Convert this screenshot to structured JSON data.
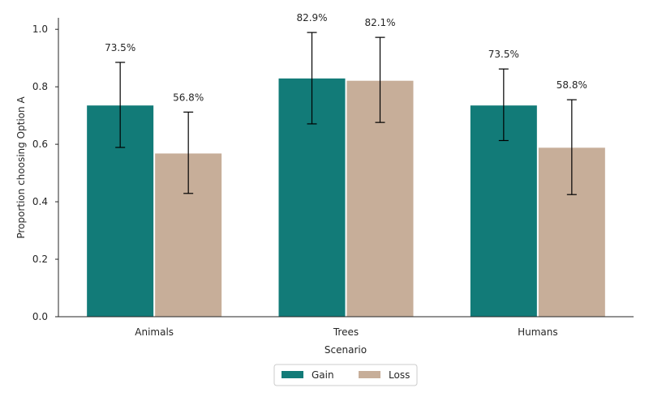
{
  "chart_data": {
    "type": "bar",
    "title": "",
    "xlabel": "Scenario",
    "ylabel": "Proportion choosing Option A",
    "categories": [
      "Animals",
      "Trees",
      "Humans"
    ],
    "ylim": [
      0,
      1.04
    ],
    "yticks": [
      0.0,
      0.2,
      0.4,
      0.6,
      0.8,
      1.0
    ],
    "ytick_labels": [
      "0.0",
      "0.2",
      "0.4",
      "0.6",
      "0.8",
      "1.0"
    ],
    "grid": false,
    "legend_position": "bottom-center",
    "series": [
      {
        "name": "Gain",
        "color": "#127B78",
        "values": [
          0.735,
          0.829,
          0.735
        ],
        "err_low": [
          0.589,
          0.671,
          0.613
        ],
        "err_high": [
          0.885,
          0.989,
          0.862
        ],
        "labels": [
          "73.5%",
          "82.9%",
          "73.5%"
        ]
      },
      {
        "name": "Loss",
        "color": "#C7AE99",
        "values": [
          0.568,
          0.821,
          0.588
        ],
        "err_low": [
          0.429,
          0.676,
          0.425
        ],
        "err_high": [
          0.712,
          0.972,
          0.755
        ],
        "labels": [
          "56.8%",
          "82.1%",
          "58.8%"
        ]
      }
    ]
  }
}
